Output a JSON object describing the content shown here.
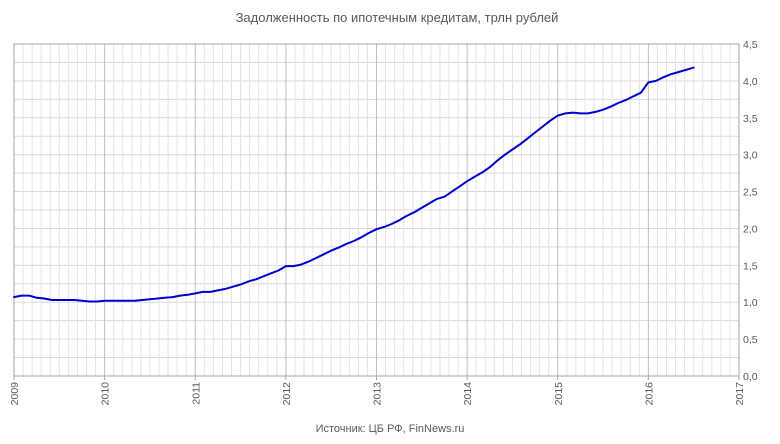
{
  "chart_data": {
    "type": "line",
    "title": "Задолженность по ипотечным кредитам, трлн рублей",
    "source": "Источник: ЦБ РФ, FinNews.ru",
    "xlabel": "",
    "ylabel": "",
    "xlim": [
      2009,
      2017
    ],
    "ylim": [
      0,
      4.5
    ],
    "y_axis_side": "right",
    "x_tick_labels": [
      "2009",
      "2010",
      "2011",
      "2012",
      "2013",
      "2014",
      "2015",
      "2016",
      "2017"
    ],
    "y_tick_labels": [
      "0,0",
      "0,5",
      "1,0",
      "1,5",
      "2,0",
      "2,5",
      "3,0",
      "3,5",
      "4,0",
      "4,5"
    ],
    "grid": true,
    "line_color": "#0000cc",
    "series": [
      {
        "name": "",
        "x": [
          2009.0,
          2009.083,
          2009.167,
          2009.25,
          2009.333,
          2009.417,
          2009.5,
          2009.583,
          2009.667,
          2009.75,
          2009.833,
          2009.917,
          2010.0,
          2010.083,
          2010.167,
          2010.25,
          2010.333,
          2010.417,
          2010.5,
          2010.583,
          2010.667,
          2010.75,
          2010.833,
          2010.917,
          2011.0,
          2011.083,
          2011.167,
          2011.25,
          2011.333,
          2011.417,
          2011.5,
          2011.583,
          2011.667,
          2011.75,
          2011.833,
          2011.917,
          2012.0,
          2012.083,
          2012.167,
          2012.25,
          2012.333,
          2012.417,
          2012.5,
          2012.583,
          2012.667,
          2012.75,
          2012.833,
          2012.917,
          2013.0,
          2013.083,
          2013.167,
          2013.25,
          2013.333,
          2013.417,
          2013.5,
          2013.583,
          2013.667,
          2013.75,
          2013.833,
          2013.917,
          2014.0,
          2014.083,
          2014.167,
          2014.25,
          2014.333,
          2014.417,
          2014.5,
          2014.583,
          2014.667,
          2014.75,
          2014.833,
          2014.917,
          2015.0,
          2015.083,
          2015.167,
          2015.25,
          2015.333,
          2015.417,
          2015.5,
          2015.583,
          2015.667,
          2015.75,
          2015.833,
          2015.917,
          2016.0,
          2016.083,
          2016.167,
          2016.25,
          2016.333,
          2016.417,
          2016.5
        ],
        "values": [
          1.07,
          1.09,
          1.09,
          1.06,
          1.05,
          1.03,
          1.03,
          1.03,
          1.03,
          1.02,
          1.01,
          1.01,
          1.02,
          1.02,
          1.02,
          1.02,
          1.02,
          1.03,
          1.04,
          1.05,
          1.06,
          1.07,
          1.09,
          1.1,
          1.12,
          1.14,
          1.14,
          1.16,
          1.18,
          1.21,
          1.24,
          1.28,
          1.31,
          1.35,
          1.39,
          1.43,
          1.49,
          1.49,
          1.51,
          1.55,
          1.6,
          1.65,
          1.7,
          1.74,
          1.79,
          1.83,
          1.88,
          1.94,
          1.99,
          2.02,
          2.06,
          2.11,
          2.17,
          2.22,
          2.28,
          2.34,
          2.4,
          2.43,
          2.5,
          2.57,
          2.64,
          2.7,
          2.76,
          2.83,
          2.92,
          3.0,
          3.07,
          3.14,
          3.22,
          3.3,
          3.38,
          3.46,
          3.53,
          3.56,
          3.57,
          3.56,
          3.56,
          3.58,
          3.61,
          3.65,
          3.7,
          3.74,
          3.79,
          3.84,
          3.98,
          4.0,
          4.05,
          4.09,
          4.12,
          4.15,
          4.18
        ]
      }
    ]
  }
}
